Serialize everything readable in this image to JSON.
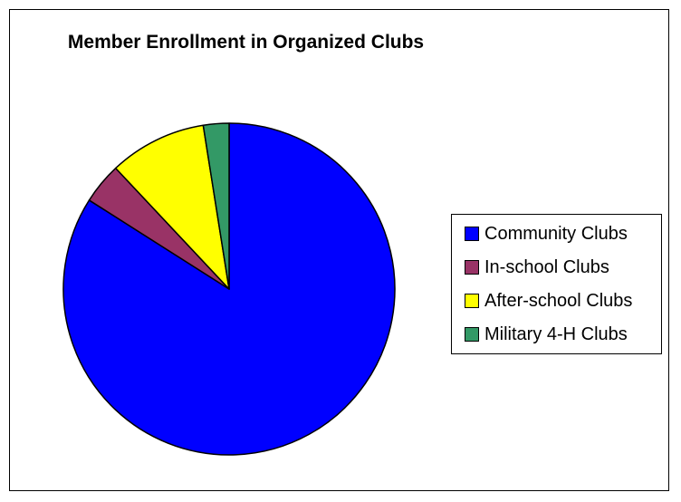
{
  "chart_data": {
    "type": "pie",
    "title": "Member Enrollment in Organized Clubs",
    "categories": [
      "Community Clubs",
      "In-school Clubs",
      "After-school Clubs",
      "Military 4-H Clubs"
    ],
    "values": [
      84,
      4,
      9.5,
      2.5
    ],
    "colors": [
      "#0000FF",
      "#993366",
      "#FFFF00",
      "#339966"
    ],
    "start_angle_deg": 0,
    "direction": "clockwise",
    "legend_position": "right"
  }
}
